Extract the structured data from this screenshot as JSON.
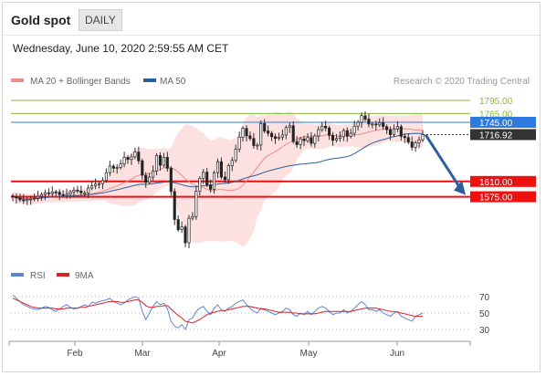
{
  "header": {
    "title": "Gold spot",
    "period": "DAILY"
  },
  "timestamp": "Wednesday, June 10, 2020 2:59:55 AM CET",
  "credit": "Research © 2020 Trading Central",
  "legend": {
    "ma": "MA 20 + Bollinger Bands",
    "ma50": "MA 50",
    "rsi": "RSI",
    "rsi_ma": "9MA"
  },
  "colors": {
    "ma20": "#f08a8a",
    "ma50": "#2d5fa0",
    "bands": "#fde0e0",
    "support": "#ee1111",
    "resistance": "#8ab840",
    "pivot": "#2e7be0",
    "arrow": "#2d5fa0",
    "rsi": "#5b86d6",
    "rsi_ma": "#e02020",
    "last": "#333333"
  },
  "chart_data": [
    {
      "type": "candlestick",
      "title": "Gold spot",
      "interval": "daily",
      "x_ticks": [
        "Feb",
        "Mar",
        "Apr",
        "May",
        "Jun"
      ],
      "y_scale": {
        "ticks": [
          1795,
          1765,
          1745
        ],
        "price_at_top": 1795,
        "pixels_per_unit": 0.48
      },
      "levels": [
        {
          "value": 1795.0,
          "label": "1795.00",
          "kind": "resistance"
        },
        {
          "value": 1765.0,
          "label": "1765.00",
          "kind": "resistance"
        },
        {
          "value": 1745.0,
          "label": "1745.00",
          "kind": "pivot"
        },
        {
          "value": 1716.92,
          "label": "1716.92",
          "kind": "last"
        },
        {
          "value": 1610.0,
          "label": "1610.00",
          "kind": "support"
        },
        {
          "value": 1575.0,
          "label": "1575.00",
          "kind": "support"
        }
      ],
      "last_price": 1716.92,
      "forecast": {
        "from": 1716.92,
        "to": 1575.0,
        "direction": "down"
      },
      "closes": [
        1575,
        1572,
        1568,
        1566,
        1569,
        1570,
        1572,
        1576,
        1580,
        1584,
        1582,
        1586,
        1585,
        1580,
        1578,
        1581,
        1586,
        1590,
        1588,
        1584,
        1584,
        1595,
        1600,
        1604,
        1605,
        1612,
        1630,
        1645,
        1640,
        1642,
        1650,
        1665,
        1660,
        1666,
        1677,
        1657,
        1624,
        1608,
        1620,
        1634,
        1669,
        1647,
        1665,
        1640,
        1587,
        1523,
        1500,
        1506,
        1470,
        1526,
        1530,
        1588,
        1617,
        1631,
        1602,
        1592,
        1630,
        1655,
        1620,
        1614,
        1646,
        1658,
        1684,
        1711,
        1731,
        1714,
        1708,
        1692,
        1693,
        1742,
        1725,
        1720,
        1712,
        1708,
        1711,
        1716,
        1733,
        1737,
        1701,
        1694,
        1707,
        1703,
        1710,
        1697,
        1714,
        1728,
        1736,
        1732,
        1715,
        1704,
        1708,
        1712,
        1726,
        1713,
        1720,
        1736,
        1745,
        1760,
        1752,
        1741,
        1741,
        1739,
        1744,
        1735,
        1728,
        1717,
        1730,
        1735,
        1713,
        1710,
        1700,
        1688,
        1698,
        1705,
        1716.92
      ]
    },
    {
      "type": "line",
      "title": "",
      "ylim": [
        20,
        80
      ],
      "y_ticks": [
        70,
        50,
        30
      ],
      "x_ticks": [
        "Feb",
        "Mar",
        "Apr",
        "May",
        "Jun"
      ],
      "series": [
        {
          "name": "RSI",
          "values": [
            72,
            68,
            64,
            60,
            58,
            56,
            55,
            54,
            56,
            58,
            57,
            54,
            52,
            55,
            58,
            60,
            57,
            55,
            56,
            58,
            60,
            58,
            63,
            62,
            64,
            65,
            66,
            68,
            64,
            62,
            60,
            62,
            66,
            68,
            70,
            68,
            52,
            42,
            50,
            58,
            64,
            60,
            62,
            55,
            40,
            34,
            32,
            36,
            30,
            42,
            44,
            52,
            56,
            58,
            52,
            48,
            56,
            60,
            54,
            52,
            56,
            58,
            62,
            64,
            66,
            60,
            56,
            52,
            50,
            56,
            54,
            52,
            50,
            48,
            50,
            52,
            56,
            54,
            48,
            46,
            50,
            48,
            52,
            48,
            52,
            56,
            58,
            56,
            52,
            48,
            50,
            50,
            54,
            50,
            52,
            56,
            60,
            64,
            60,
            54,
            54,
            52,
            54,
            50,
            48,
            46,
            50,
            52,
            46,
            44,
            42,
            40,
            46,
            48,
            50
          ]
        },
        {
          "name": "9MA",
          "values": [
            68,
            66,
            64,
            62,
            60,
            58,
            57,
            56,
            56,
            56,
            56,
            56,
            55,
            55,
            55,
            56,
            56,
            56,
            56,
            57,
            57,
            58,
            59,
            60,
            61,
            62,
            63,
            64,
            64,
            64,
            63,
            63,
            64,
            65,
            66,
            66,
            63,
            59,
            57,
            57,
            58,
            58,
            59,
            59,
            55,
            51,
            47,
            44,
            40,
            39,
            38,
            40,
            42,
            45,
            48,
            50,
            51,
            52,
            53,
            53,
            54,
            55,
            56,
            57,
            58,
            58,
            58,
            57,
            56,
            55,
            55,
            54,
            53,
            52,
            51,
            51,
            51,
            51,
            50,
            50,
            49,
            49,
            49,
            49,
            49,
            50,
            51,
            52,
            52,
            52,
            52,
            52,
            52,
            52,
            52,
            53,
            54,
            55,
            56,
            56,
            56,
            56,
            55,
            54,
            53,
            52,
            52,
            51,
            50,
            49,
            48,
            47,
            46,
            46,
            46
          ]
        }
      ]
    }
  ]
}
